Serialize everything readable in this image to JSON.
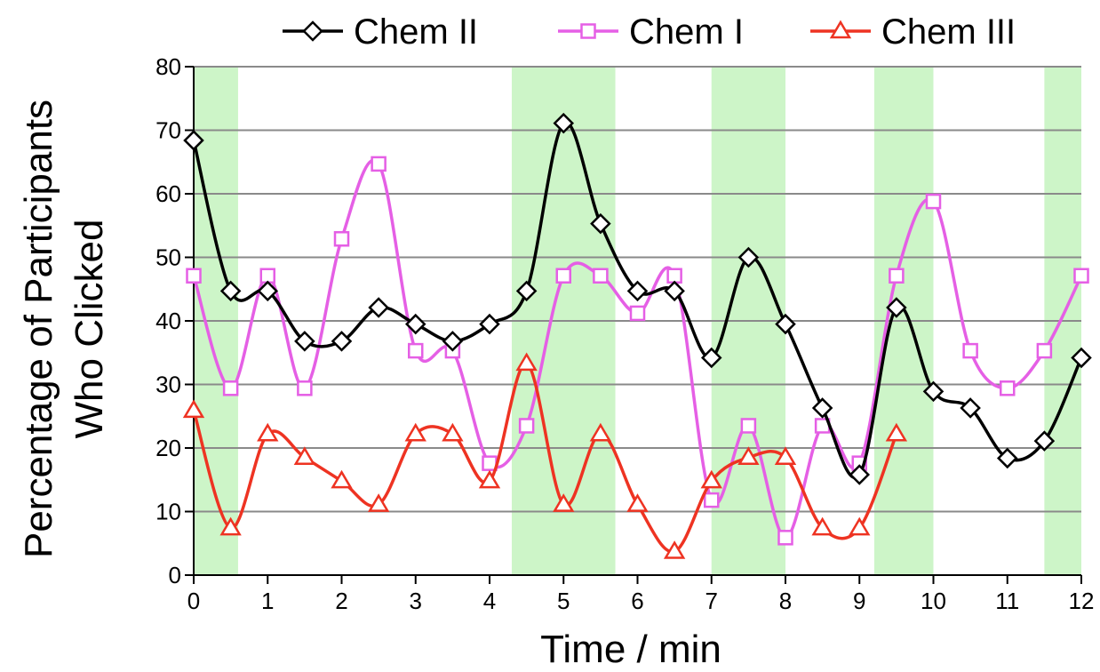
{
  "chart_data": {
    "type": "line",
    "xlabel": "Time / min",
    "ylabel_line1": "Percentage of Participants",
    "ylabel_line2": "Who Clicked",
    "xlim": [
      0,
      12
    ],
    "ylim": [
      0,
      80
    ],
    "xticks": [
      0,
      1,
      2,
      3,
      4,
      5,
      6,
      7,
      8,
      9,
      10,
      11,
      12
    ],
    "yticks": [
      0,
      10,
      20,
      30,
      40,
      50,
      60,
      70,
      80
    ],
    "grid": "horizontal",
    "legend_position": "top",
    "shaded_intervals": [
      [
        0,
        0.6
      ],
      [
        4.3,
        5.7
      ],
      [
        7.0,
        8.0
      ],
      [
        9.2,
        10.0
      ],
      [
        11.5,
        12.0
      ]
    ],
    "shade_color": "#cdf5c8",
    "series": [
      {
        "name": "Chem II",
        "color": "#000000",
        "marker": "diamond",
        "x": [
          0,
          0.5,
          1,
          1.5,
          2,
          2.5,
          3,
          3.5,
          4,
          4.5,
          5,
          5.5,
          6,
          6.5,
          7,
          7.5,
          8,
          8.5,
          9,
          9.5,
          10,
          10.5,
          11,
          11.5,
          12
        ],
        "values": [
          68.4,
          44.7,
          44.7,
          36.8,
          36.8,
          42.1,
          39.5,
          36.8,
          39.5,
          44.7,
          71.1,
          55.3,
          44.7,
          44.7,
          34.2,
          50.0,
          39.5,
          26.3,
          15.8,
          42.1,
          28.9,
          26.3,
          18.4,
          21.1,
          34.2
        ]
      },
      {
        "name": "Chem I",
        "color": "#e55fe5",
        "marker": "square",
        "x": [
          0,
          0.5,
          1,
          1.5,
          2,
          2.5,
          3,
          3.5,
          4,
          4.5,
          5,
          5.5,
          6,
          6.5,
          7,
          7.5,
          8,
          8.5,
          9,
          9.5,
          10,
          10.5,
          11,
          11.5,
          12
        ],
        "values": [
          47.1,
          29.4,
          47.1,
          29.4,
          52.9,
          64.7,
          35.3,
          35.3,
          17.6,
          23.5,
          47.1,
          47.1,
          41.2,
          47.1,
          11.8,
          23.5,
          5.9,
          23.5,
          17.6,
          47.1,
          58.8,
          35.3,
          29.4,
          35.3,
          47.1
        ]
      },
      {
        "name": "Chem III",
        "color": "#ee3322",
        "marker": "triangle",
        "x": [
          0,
          0.5,
          1,
          1.5,
          2,
          2.5,
          3,
          3.5,
          4,
          4.5,
          5,
          5.5,
          6,
          6.5,
          7,
          7.5,
          8,
          8.5,
          9,
          9.5
        ],
        "values": [
          25.9,
          7.4,
          22.2,
          18.5,
          14.8,
          11.1,
          22.2,
          22.2,
          14.8,
          33.3,
          11.1,
          22.2,
          11.1,
          3.7,
          14.8,
          18.5,
          18.5,
          7.4,
          7.4,
          22.2
        ]
      }
    ]
  }
}
